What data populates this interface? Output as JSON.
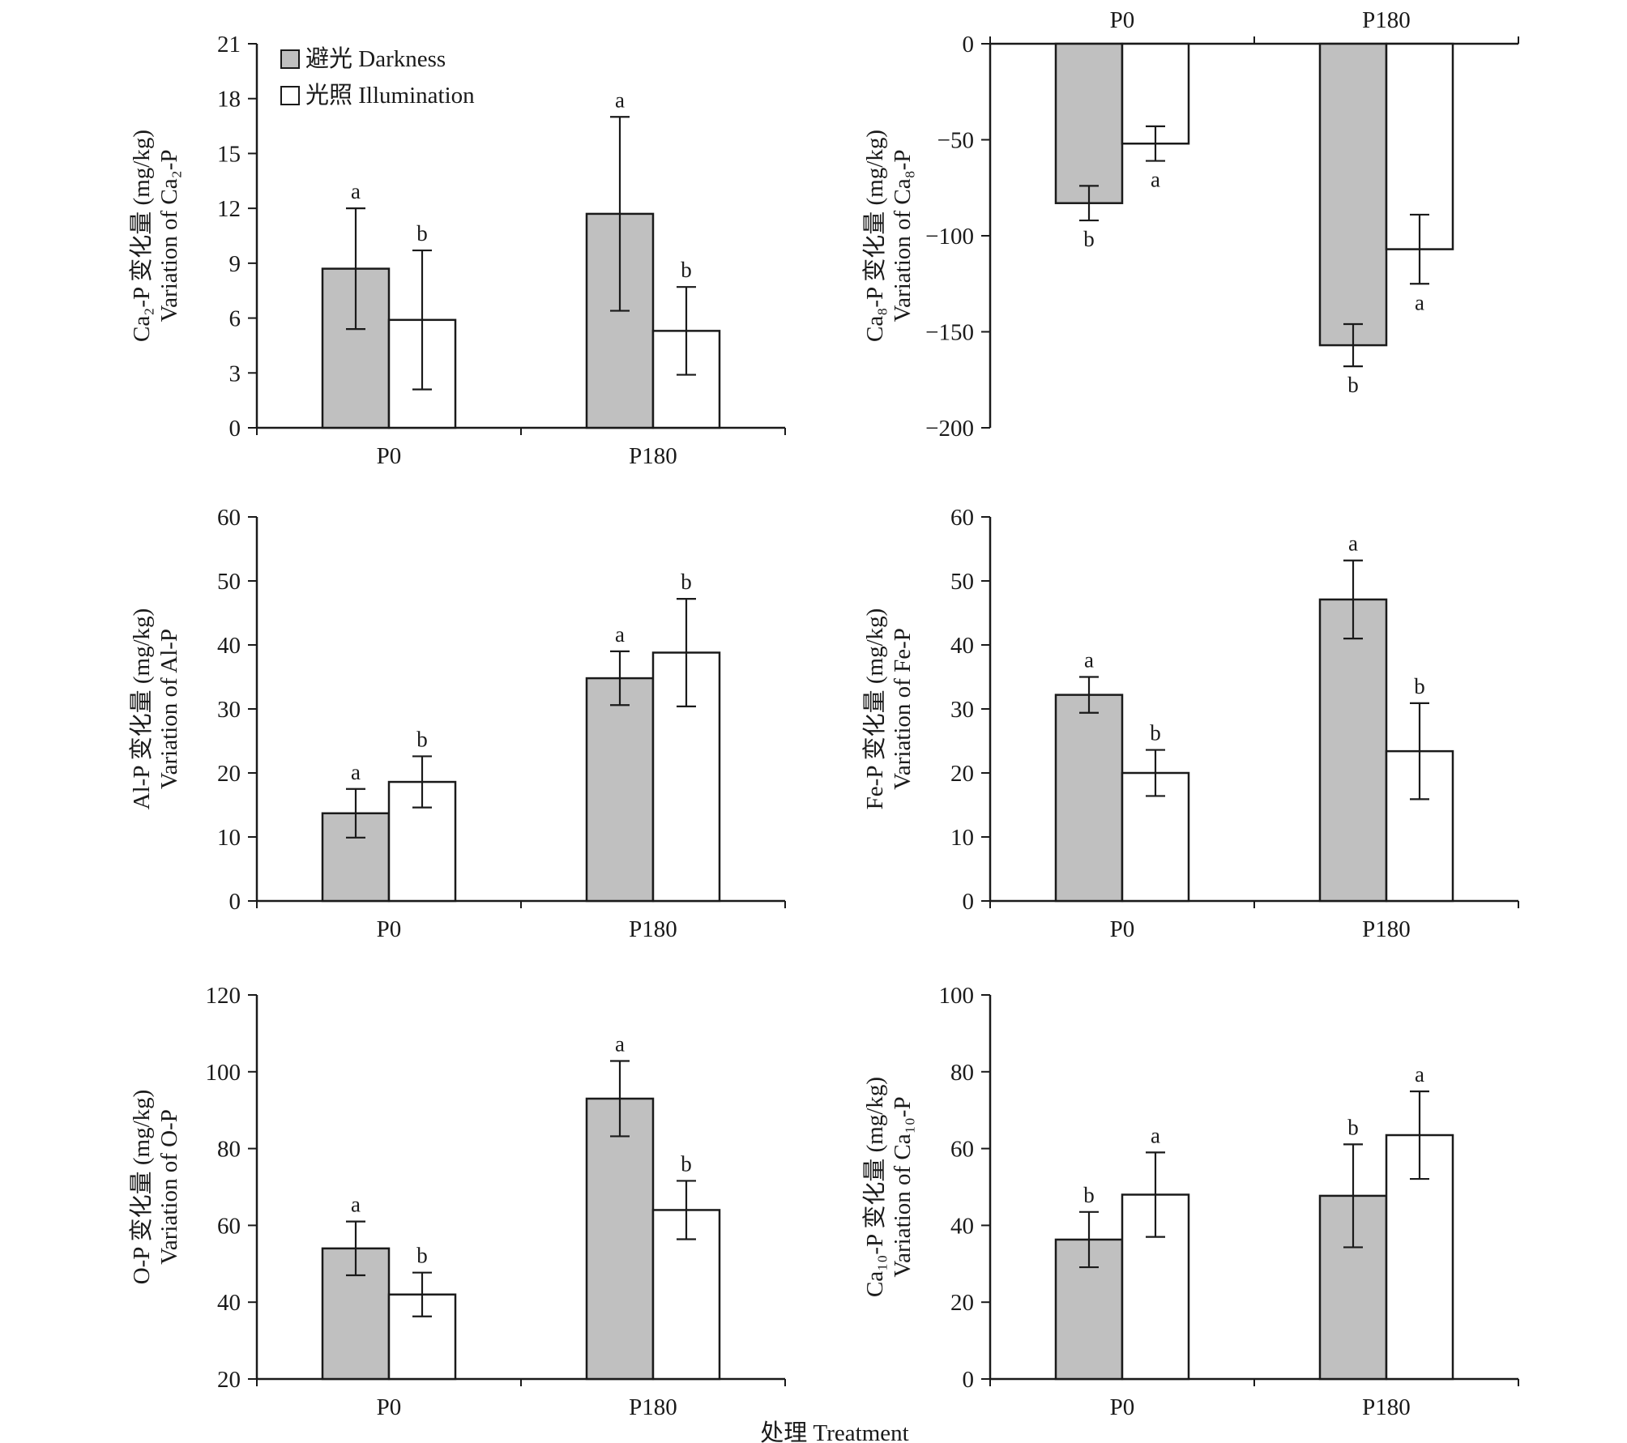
{
  "colors": {
    "darkness": "#c0c0c0",
    "illumination": "#ffffff",
    "axis": "#1a1a1a"
  },
  "legend": {
    "darkness": "避光 Darkness",
    "illumination": "光照 Illumination"
  },
  "xlabel": "处理 Treatment",
  "chart_data": [
    {
      "type": "bar",
      "categories": [
        "P0",
        "P180"
      ],
      "ylabel_cn": "Ca₂-P 变化量 (mg/kg)",
      "ylabel_en": "Variation of Ca₂-P",
      "ylim": [
        0,
        21
      ],
      "yticks": [
        0,
        3,
        6,
        9,
        12,
        15,
        18,
        21
      ],
      "x_axis_position": "bottom",
      "series": [
        {
          "name": "避光 Darkness",
          "values": [
            8.7,
            11.7
          ],
          "errors": [
            3.3,
            5.3
          ],
          "sig": [
            "a",
            "a"
          ]
        },
        {
          "name": "光照 Illumination",
          "values": [
            5.9,
            5.3
          ],
          "errors": [
            3.8,
            2.4
          ],
          "sig": [
            "b",
            "b"
          ]
        }
      ]
    },
    {
      "type": "bar",
      "categories": [
        "P0",
        "P180"
      ],
      "ylabel_cn": "Ca₈-P 变化量 (mg/kg)",
      "ylabel_en": "Variation of Ca₈-P",
      "ylim": [
        -200,
        0
      ],
      "yticks": [
        0,
        -50,
        -100,
        -150,
        -200
      ],
      "x_axis_position": "top",
      "series": [
        {
          "name": "避光 Darkness",
          "values": [
            -83,
            -157
          ],
          "errors": [
            9,
            11
          ],
          "sig": [
            "b",
            "b"
          ]
        },
        {
          "name": "光照 Illumination",
          "values": [
            -52,
            -107
          ],
          "errors": [
            9,
            18
          ],
          "sig": [
            "a",
            "a"
          ]
        }
      ]
    },
    {
      "type": "bar",
      "categories": [
        "P0",
        "P180"
      ],
      "ylabel_cn": "Al-P 变化量 (mg/kg)",
      "ylabel_en": "Variation of Al-P",
      "ylim": [
        0,
        60
      ],
      "yticks": [
        0,
        10,
        20,
        30,
        40,
        50,
        60
      ],
      "x_axis_position": "bottom",
      "series": [
        {
          "name": "避光 Darkness",
          "values": [
            13.7,
            34.8
          ],
          "errors": [
            3.8,
            4.2
          ],
          "sig": [
            "a",
            "a"
          ]
        },
        {
          "name": "光照 Illumination",
          "values": [
            18.6,
            38.8
          ],
          "errors": [
            4.0,
            8.4
          ],
          "sig": [
            "b",
            "b"
          ]
        }
      ]
    },
    {
      "type": "bar",
      "categories": [
        "P0",
        "P180"
      ],
      "ylabel_cn": "Fe-P 变化量 (mg/kg)",
      "ylabel_en": "Variation of Fe-P",
      "ylim": [
        0,
        60
      ],
      "yticks": [
        0,
        10,
        20,
        30,
        40,
        50,
        60
      ],
      "x_axis_position": "bottom",
      "series": [
        {
          "name": "避光 Darkness",
          "values": [
            32.2,
            47.1
          ],
          "errors": [
            2.8,
            6.1
          ],
          "sig": [
            "a",
            "a"
          ]
        },
        {
          "name": "光照 Illumination",
          "values": [
            20.0,
            23.4
          ],
          "errors": [
            3.6,
            7.5
          ],
          "sig": [
            "b",
            "b"
          ]
        }
      ]
    },
    {
      "type": "bar",
      "categories": [
        "P0",
        "P180"
      ],
      "ylabel_cn": "O-P 变化量 (mg/kg)",
      "ylabel_en": "Variation of O-P",
      "ylim": [
        20,
        120
      ],
      "yticks": [
        20,
        40,
        60,
        80,
        100,
        120
      ],
      "x_axis_position": "bottom",
      "series": [
        {
          "name": "避光 Darkness",
          "values": [
            54,
            93
          ],
          "errors": [
            7,
            9.8
          ],
          "sig": [
            "a",
            "a"
          ]
        },
        {
          "name": "光照 Illumination",
          "values": [
            42,
            64
          ],
          "errors": [
            5.7,
            7.6
          ],
          "sig": [
            "b",
            "b"
          ]
        }
      ]
    },
    {
      "type": "bar",
      "categories": [
        "P0",
        "P180"
      ],
      "ylabel_cn": "Ca₁₀-P 变化量 (mg/kg)",
      "ylabel_en": "Variation of Ca₁₀-P",
      "ylim": [
        0,
        100
      ],
      "yticks": [
        0,
        20,
        40,
        60,
        80,
        100
      ],
      "x_axis_position": "bottom",
      "series": [
        {
          "name": "避光 Darkness",
          "values": [
            36.3,
            47.7
          ],
          "errors": [
            7.2,
            13.4
          ],
          "sig": [
            "b",
            "b"
          ]
        },
        {
          "name": "光照 Illumination",
          "values": [
            48.0,
            63.5
          ],
          "errors": [
            11.0,
            11.4
          ],
          "sig": [
            "a",
            "a"
          ]
        }
      ]
    }
  ]
}
